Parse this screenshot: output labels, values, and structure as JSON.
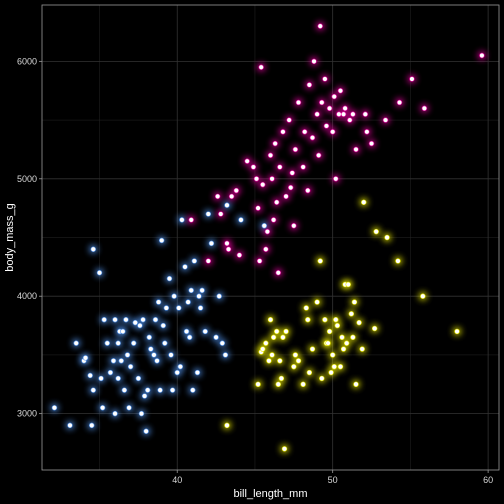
{
  "chart_data": {
    "type": "scatter",
    "title": "",
    "xlabel": "bill_length_mm",
    "ylabel": "body_mass_g",
    "xlim": [
      31.3,
      60.7
    ],
    "ylim": [
      2520,
      6480
    ],
    "xticks": [
      40,
      50,
      60
    ],
    "yticks": [
      3000,
      4000,
      5000,
      6000
    ],
    "xtick_labels": [
      "40",
      "50",
      "60"
    ],
    "ytick_labels": [
      "3000",
      "4000",
      "5000",
      "6000"
    ],
    "grid": true,
    "legend": "none",
    "background": "#000000",
    "panel_border": "#9a9a9a",
    "grid_color": "#262626",
    "series": [
      {
        "color": "#4f8fe6",
        "points": [
          [
            32.1,
            3050
          ],
          [
            33.1,
            2900
          ],
          [
            33.5,
            3600
          ],
          [
            34.0,
            3450
          ],
          [
            34.1,
            3475
          ],
          [
            34.4,
            3325
          ],
          [
            34.5,
            2900
          ],
          [
            34.6,
            3200
          ],
          [
            34.6,
            4400
          ],
          [
            35.0,
            4200
          ],
          [
            35.1,
            3300
          ],
          [
            35.2,
            3050
          ],
          [
            35.3,
            3800
          ],
          [
            35.5,
            3600
          ],
          [
            35.7,
            3350
          ],
          [
            35.9,
            3450
          ],
          [
            36.0,
            3000
          ],
          [
            36.0,
            3800
          ],
          [
            36.2,
            3600
          ],
          [
            36.2,
            3300
          ],
          [
            36.3,
            3700
          ],
          [
            36.4,
            3450
          ],
          [
            36.5,
            3700
          ],
          [
            36.6,
            3200
          ],
          [
            36.7,
            3800
          ],
          [
            36.8,
            3500
          ],
          [
            36.9,
            3050
          ],
          [
            37.0,
            3400
          ],
          [
            37.2,
            3600
          ],
          [
            37.3,
            3775
          ],
          [
            37.5,
            3300
          ],
          [
            37.6,
            3750
          ],
          [
            37.7,
            3000
          ],
          [
            37.8,
            3800
          ],
          [
            37.9,
            3150
          ],
          [
            38.0,
            2850
          ],
          [
            38.1,
            3200
          ],
          [
            38.2,
            3650
          ],
          [
            38.3,
            3550
          ],
          [
            38.5,
            3500
          ],
          [
            38.6,
            3800
          ],
          [
            38.7,
            3450
          ],
          [
            38.8,
            3950
          ],
          [
            38.9,
            3200
          ],
          [
            39.0,
            4475
          ],
          [
            39.1,
            3750
          ],
          [
            39.2,
            3600
          ],
          [
            39.3,
            3900
          ],
          [
            39.5,
            4150
          ],
          [
            39.6,
            3500
          ],
          [
            39.7,
            3200
          ],
          [
            39.8,
            4000
          ],
          [
            40.0,
            3350
          ],
          [
            40.1,
            3900
          ],
          [
            40.2,
            3400
          ],
          [
            40.3,
            4650
          ],
          [
            40.5,
            4250
          ],
          [
            40.6,
            3700
          ],
          [
            40.7,
            3950
          ],
          [
            40.8,
            3650
          ],
          [
            40.9,
            4050
          ],
          [
            41.0,
            3200
          ],
          [
            41.1,
            4300
          ],
          [
            41.3,
            3350
          ],
          [
            41.4,
            4000
          ],
          [
            41.5,
            3900
          ],
          [
            41.6,
            4050
          ],
          [
            41.8,
            3700
          ],
          [
            42.0,
            4700
          ],
          [
            42.2,
            4450
          ],
          [
            42.5,
            3650
          ],
          [
            42.7,
            4000
          ],
          [
            42.9,
            3600
          ],
          [
            43.1,
            3500
          ],
          [
            43.2,
            4775
          ],
          [
            44.1,
            4650
          ],
          [
            45.6,
            4600
          ]
        ]
      },
      {
        "color": "#e0009a",
        "points": [
          [
            40.9,
            4650
          ],
          [
            42.0,
            4300
          ],
          [
            42.6,
            4850
          ],
          [
            42.8,
            4700
          ],
          [
            43.2,
            4450
          ],
          [
            43.3,
            4400
          ],
          [
            43.5,
            4850
          ],
          [
            43.8,
            4900
          ],
          [
            44.0,
            4350
          ],
          [
            44.5,
            5150
          ],
          [
            44.9,
            5100
          ],
          [
            45.1,
            5000
          ],
          [
            45.2,
            4750
          ],
          [
            45.3,
            4300
          ],
          [
            45.4,
            5950
          ],
          [
            45.5,
            4950
          ],
          [
            45.7,
            4400
          ],
          [
            45.8,
            4550
          ],
          [
            46.0,
            5200
          ],
          [
            46.1,
            5000
          ],
          [
            46.2,
            4650
          ],
          [
            46.3,
            5300
          ],
          [
            46.4,
            4800
          ],
          [
            46.5,
            4200
          ],
          [
            46.6,
            5100
          ],
          [
            46.8,
            5400
          ],
          [
            47.0,
            4850
          ],
          [
            47.2,
            5500
          ],
          [
            47.3,
            4925
          ],
          [
            47.4,
            5050
          ],
          [
            47.5,
            4600
          ],
          [
            47.6,
            5250
          ],
          [
            47.8,
            5650
          ],
          [
            48.1,
            5100
          ],
          [
            48.2,
            5400
          ],
          [
            48.4,
            4900
          ],
          [
            48.5,
            5800
          ],
          [
            48.7,
            5350
          ],
          [
            48.8,
            6000
          ],
          [
            49.0,
            5550
          ],
          [
            49.1,
            5200
          ],
          [
            49.2,
            6300
          ],
          [
            49.3,
            5650
          ],
          [
            49.5,
            5850
          ],
          [
            49.6,
            5450
          ],
          [
            49.8,
            5600
          ],
          [
            50.0,
            5400
          ],
          [
            50.1,
            5700
          ],
          [
            50.2,
            5000
          ],
          [
            50.4,
            5550
          ],
          [
            50.5,
            5750
          ],
          [
            50.7,
            5550
          ],
          [
            50.8,
            5600
          ],
          [
            51.1,
            5500
          ],
          [
            51.3,
            5550
          ],
          [
            51.5,
            5250
          ],
          [
            52.1,
            5550
          ],
          [
            52.2,
            5400
          ],
          [
            52.5,
            5300
          ],
          [
            53.4,
            5500
          ],
          [
            54.3,
            5650
          ],
          [
            55.1,
            5850
          ],
          [
            55.9,
            5600
          ],
          [
            59.6,
            6050
          ]
        ]
      },
      {
        "color": "#e8e800",
        "points": [
          [
            43.2,
            2900
          ],
          [
            45.2,
            3250
          ],
          [
            45.4,
            3525
          ],
          [
            45.5,
            3550
          ],
          [
            45.7,
            3600
          ],
          [
            45.9,
            3450
          ],
          [
            46.0,
            3800
          ],
          [
            46.1,
            3500
          ],
          [
            46.2,
            3650
          ],
          [
            46.4,
            3700
          ],
          [
            46.5,
            3250
          ],
          [
            46.6,
            3450
          ],
          [
            46.7,
            3300
          ],
          [
            46.8,
            3650
          ],
          [
            46.9,
            2700
          ],
          [
            47.0,
            3700
          ],
          [
            47.5,
            3400
          ],
          [
            47.6,
            3500
          ],
          [
            48.1,
            3250
          ],
          [
            48.4,
            3800
          ],
          [
            48.5,
            3350
          ],
          [
            48.7,
            3550
          ],
          [
            49.0,
            3950
          ],
          [
            49.2,
            4300
          ],
          [
            49.3,
            3300
          ],
          [
            49.5,
            3800
          ],
          [
            49.6,
            3600
          ],
          [
            49.7,
            3600
          ],
          [
            49.8,
            3700
          ],
          [
            50.0,
            3500
          ],
          [
            50.1,
            3400
          ],
          [
            50.2,
            3800
          ],
          [
            50.3,
            3750
          ],
          [
            50.5,
            3400
          ],
          [
            50.6,
            3650
          ],
          [
            50.7,
            3550
          ],
          [
            50.8,
            4100
          ],
          [
            51.0,
            4100
          ],
          [
            51.3,
            3650
          ],
          [
            51.4,
            3950
          ],
          [
            51.5,
            3250
          ],
          [
            51.7,
            3775
          ],
          [
            51.9,
            3550
          ],
          [
            52.0,
            4800
          ],
          [
            52.7,
            3725
          ],
          [
            52.8,
            4550
          ],
          [
            53.5,
            4500
          ],
          [
            54.2,
            4300
          ],
          [
            55.8,
            4000
          ],
          [
            58.0,
            3700
          ],
          [
            47.8,
            3450
          ],
          [
            48.3,
            3900
          ],
          [
            50.9,
            3600
          ],
          [
            49.9,
            3350
          ],
          [
            51.2,
            3850
          ]
        ]
      }
    ]
  }
}
